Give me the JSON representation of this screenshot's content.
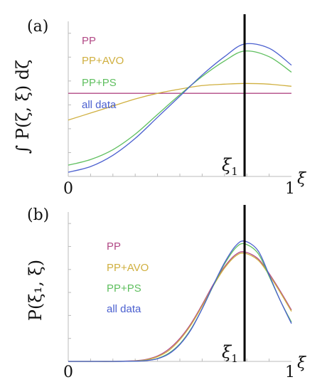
{
  "figure": {
    "panels": [
      "(a)",
      "(b)"
    ],
    "xi_symbol": "ξ",
    "xi1_label": "ξ",
    "xi1_subscript": "1"
  },
  "colors": {
    "PP": "#b24a86",
    "PP+AVO": "#d0b040",
    "PP+PS": "#5fbf5f",
    "all data": "#4a5fcf"
  },
  "chart_data": [
    {
      "type": "line",
      "panel": "(a)",
      "ylabel": "∫ P(ζ, ξ) dζ",
      "xlabel": "ξ",
      "x_ticks": [
        "0",
        "1"
      ],
      "xlim": [
        0,
        1
      ],
      "ylim": [
        0,
        1
      ],
      "grid": false,
      "legend_placement": "top-left",
      "vertical_line": {
        "x": 0.79,
        "label": "ξ1"
      },
      "x": [
        0,
        0.1,
        0.2,
        0.3,
        0.4,
        0.5,
        0.6,
        0.7,
        0.79,
        0.9,
        1.0
      ],
      "series": [
        {
          "name": "PP",
          "values": [
            0.59,
            0.59,
            0.59,
            0.59,
            0.59,
            0.59,
            0.59,
            0.59,
            0.59,
            0.59,
            0.59
          ]
        },
        {
          "name": "PP+AVO",
          "values": [
            0.4,
            0.45,
            0.5,
            0.55,
            0.59,
            0.62,
            0.645,
            0.655,
            0.66,
            0.655,
            0.64
          ]
        },
        {
          "name": "PP+PS",
          "values": [
            0.08,
            0.12,
            0.19,
            0.3,
            0.44,
            0.58,
            0.71,
            0.82,
            0.89,
            0.85,
            0.74
          ]
        },
        {
          "name": "all data",
          "values": [
            0.03,
            0.07,
            0.15,
            0.27,
            0.42,
            0.57,
            0.72,
            0.85,
            0.94,
            0.91,
            0.79
          ]
        }
      ]
    },
    {
      "type": "line",
      "panel": "(b)",
      "ylabel": "P(ξ₁, ξ)",
      "xlabel": "ξ",
      "x_ticks": [
        "0",
        "1"
      ],
      "xlim": [
        0,
        1
      ],
      "ylim": [
        0,
        1
      ],
      "grid": false,
      "legend_placement": "top-left",
      "vertical_line": {
        "x": 0.79,
        "label": "ξ1"
      },
      "x": [
        0,
        0.1,
        0.2,
        0.3,
        0.35,
        0.4,
        0.45,
        0.5,
        0.55,
        0.6,
        0.65,
        0.7,
        0.75,
        0.79,
        0.85,
        0.9,
        0.95,
        1.0
      ],
      "series": [
        {
          "name": "PP",
          "values": [
            0,
            0,
            0,
            0.005,
            0.015,
            0.04,
            0.09,
            0.17,
            0.28,
            0.42,
            0.57,
            0.7,
            0.79,
            0.81,
            0.76,
            0.65,
            0.52,
            0.38
          ]
        },
        {
          "name": "PP+AVO",
          "values": [
            0,
            0,
            0,
            0.004,
            0.012,
            0.035,
            0.08,
            0.16,
            0.27,
            0.41,
            0.56,
            0.69,
            0.78,
            0.8,
            0.75,
            0.64,
            0.51,
            0.37
          ]
        },
        {
          "name": "PP+PS",
          "values": [
            0,
            0,
            0,
            0.002,
            0.007,
            0.022,
            0.06,
            0.13,
            0.24,
            0.39,
            0.56,
            0.72,
            0.84,
            0.87,
            0.8,
            0.63,
            0.45,
            0.29
          ]
        },
        {
          "name": "all data",
          "values": [
            0,
            0,
            0,
            0.002,
            0.006,
            0.02,
            0.055,
            0.125,
            0.235,
            0.39,
            0.565,
            0.73,
            0.855,
            0.89,
            0.82,
            0.64,
            0.45,
            0.28
          ]
        }
      ]
    }
  ]
}
